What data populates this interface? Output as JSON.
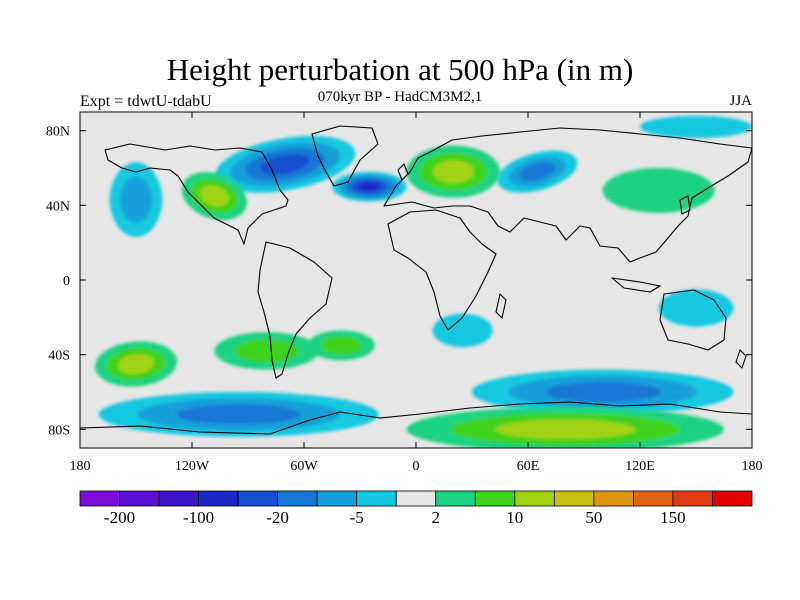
{
  "title": "Height perturbation at 500 hPa (in m)",
  "subtitle": "070kyr BP - HadCM3M2,1",
  "left_label": "Expt = tdwtU-tdabU",
  "right_label": "JJA",
  "map": {
    "projection": "cylindrical-equidistant",
    "background_color": "#e6e6e6",
    "coastline_color": "#000000",
    "lon_ticks": [
      "180",
      "120W",
      "60W",
      "0",
      "60E",
      "120E",
      "180"
    ],
    "lat_ticks": [
      "80N",
      "40N",
      "0",
      "40S",
      "80S"
    ],
    "lon_tick_values": [
      -180,
      -120,
      -60,
      0,
      60,
      120,
      180
    ],
    "lat_tick_values": [
      80,
      40,
      0,
      -40,
      -80
    ],
    "lon_range": [
      -180,
      180
    ],
    "lat_range": [
      -90,
      90
    ]
  },
  "colorbar": {
    "colors": [
      "#7a10d8",
      "#5a10d0",
      "#3c14c8",
      "#1c28c8",
      "#1450d0",
      "#1478d4",
      "#14a0d8",
      "#14c8e0",
      "#e6e6e6",
      "#1ed282",
      "#3cd21e",
      "#a0d214",
      "#c8be14",
      "#dc9614",
      "#e06414",
      "#e03c14",
      "#e00000"
    ],
    "labels": [
      "-200",
      "-100",
      "-20",
      "-5",
      "2",
      "10",
      "50",
      "150"
    ]
  },
  "fields": [
    {
      "lon": -70,
      "lat": 62,
      "rx": 38,
      "ry": 14,
      "level": 4,
      "rot": -10
    },
    {
      "lon": -25,
      "lat": 50,
      "rx": 20,
      "ry": 8,
      "level": 3,
      "rot": 0
    },
    {
      "lon": -150,
      "lat": 43,
      "rx": 14,
      "ry": 20,
      "level": 6,
      "rot": 0
    },
    {
      "lon": -108,
      "lat": 45,
      "rx": 18,
      "ry": 12,
      "level": 11,
      "rot": 20
    },
    {
      "lon": 20,
      "lat": 58,
      "rx": 25,
      "ry": 14,
      "level": 11,
      "rot": 0
    },
    {
      "lon": 65,
      "lat": 58,
      "rx": 22,
      "ry": 10,
      "level": 5,
      "rot": -15
    },
    {
      "lon": 150,
      "lat": 82,
      "rx": 30,
      "ry": 6,
      "level": 7,
      "rot": 0
    },
    {
      "lon": 130,
      "lat": 48,
      "rx": 30,
      "ry": 12,
      "level": 9,
      "rot": 0
    },
    {
      "lon": -150,
      "lat": -45,
      "rx": 22,
      "ry": 12,
      "level": 11,
      "rot": -5
    },
    {
      "lon": -80,
      "lat": -38,
      "rx": 28,
      "ry": 10,
      "level": 10,
      "rot": 0
    },
    {
      "lon": -40,
      "lat": -35,
      "rx": 18,
      "ry": 8,
      "level": 10,
      "rot": 0
    },
    {
      "lon": 25,
      "lat": -27,
      "rx": 16,
      "ry": 9,
      "level": 7,
      "rot": 0
    },
    {
      "lon": 150,
      "lat": -15,
      "rx": 20,
      "ry": 10,
      "level": 7,
      "rot": 0
    },
    {
      "lon": 100,
      "lat": -60,
      "rx": 70,
      "ry": 12,
      "level": 5,
      "rot": 0
    },
    {
      "lon": -95,
      "lat": -72,
      "rx": 75,
      "ry": 12,
      "level": 5,
      "rot": 0
    },
    {
      "lon": 80,
      "lat": -80,
      "rx": 85,
      "ry": 12,
      "level": 11,
      "rot": 0
    }
  ]
}
